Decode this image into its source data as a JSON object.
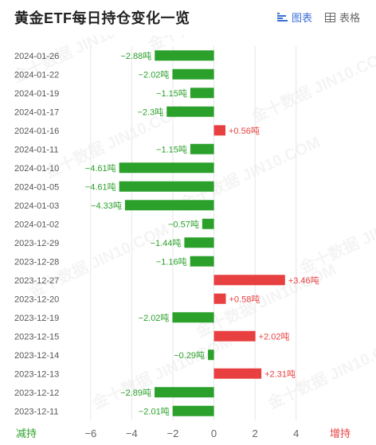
{
  "header": {
    "title": "黄金ETF每日持仓变化一览",
    "view_chart_label": "图表",
    "view_table_label": "表格"
  },
  "chart_data": {
    "type": "bar",
    "orientation": "horizontal",
    "title": "黄金ETF每日持仓变化一览",
    "unit": "吨",
    "categories": [
      "2024-01-26",
      "2024-01-22",
      "2024-01-19",
      "2024-01-17",
      "2024-01-16",
      "2024-01-11",
      "2024-01-10",
      "2024-01-05",
      "2024-01-03",
      "2024-01-02",
      "2023-12-29",
      "2023-12-28",
      "2023-12-27",
      "2023-12-20",
      "2023-12-19",
      "2023-12-15",
      "2023-12-14",
      "2023-12-13",
      "2023-12-12",
      "2023-12-11"
    ],
    "values": [
      -2.88,
      -2.02,
      -1.15,
      -2.3,
      0.56,
      -1.15,
      -4.61,
      -4.61,
      -4.33,
      -0.57,
      -1.44,
      -1.16,
      3.46,
      0.58,
      -2.02,
      2.02,
      -0.29,
      2.31,
      -2.89,
      -2.01
    ],
    "labels": [
      "−2.88吨",
      "−2.02吨",
      "−1.15吨",
      "−2.3吨",
      "+0.56吨",
      "−1.15吨",
      "−4.61吨",
      "−4.61吨",
      "−4.33吨",
      "−0.57吨",
      "−1.44吨",
      "−1.16吨",
      "+3.46吨",
      "+0.58吨",
      "−2.02吨",
      "+2.02吨",
      "−0.29吨",
      "+2.31吨",
      "−2.89吨",
      "−2.01吨"
    ],
    "xlim": [
      -7,
      7.5
    ],
    "x_ticks": [
      -6,
      -4,
      -2,
      0,
      2,
      4
    ],
    "x_tick_labels": [
      "−6",
      "−4",
      "−2",
      "0",
      "2",
      "4"
    ],
    "left_axis_label": "减持",
    "right_axis_label": "增持",
    "colors": {
      "negative": "#2ba02b",
      "positive": "#e84040",
      "grid": "#e6e6e6",
      "label_text": "#555555"
    },
    "watermark": "金十数据 JIN10.COM"
  }
}
